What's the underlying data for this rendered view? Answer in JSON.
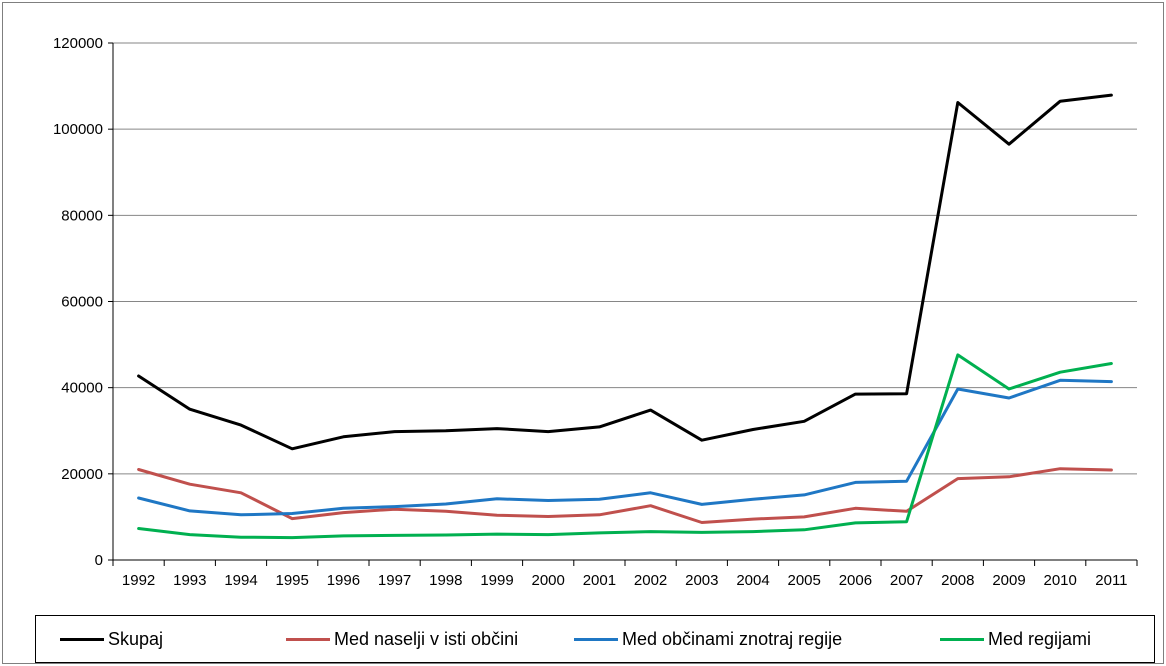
{
  "chart_data": {
    "type": "line",
    "title": "",
    "xlabel": "",
    "ylabel": "",
    "ylim": [
      0,
      120000
    ],
    "yticks": [
      "0",
      "20000",
      "40000",
      "60000",
      "80000",
      "100000",
      "120000"
    ],
    "ytick_values": [
      0,
      20000,
      40000,
      60000,
      80000,
      100000,
      120000
    ],
    "categories": [
      "1992",
      "1993",
      "1994",
      "1995",
      "1996",
      "1997",
      "1998",
      "1999",
      "2000",
      "2001",
      "2002",
      "2003",
      "2004",
      "2005",
      "2006",
      "2007",
      "2008",
      "2009",
      "2010",
      "2011"
    ],
    "grid": true,
    "legend_position": "bottom",
    "series": [
      {
        "name": "Skupaj",
        "color": "#000000",
        "values": [
          42700,
          35000,
          31300,
          25800,
          28600,
          29800,
          30000,
          30500,
          29800,
          30900,
          34800,
          27800,
          30300,
          32200,
          38500,
          38600,
          106200,
          96500,
          106500,
          107900
        ]
      },
      {
        "name": "Med naselji v isti občini",
        "color": "#c0504d",
        "values": [
          21000,
          17600,
          15600,
          9600,
          11000,
          11800,
          11300,
          10400,
          10100,
          10500,
          12600,
          8700,
          9500,
          10000,
          12000,
          11300,
          18900,
          19300,
          21200,
          20900
        ]
      },
      {
        "name": "Med občinami znotraj regije",
        "color": "#1f77c4",
        "values": [
          14400,
          11400,
          10500,
          10800,
          12000,
          12400,
          13000,
          14200,
          13800,
          14100,
          15600,
          12900,
          14100,
          15100,
          18000,
          18300,
          39700,
          37600,
          41700,
          41400
        ]
      },
      {
        "name": "Med regijami",
        "color": "#00b050",
        "values": [
          7300,
          5900,
          5300,
          5200,
          5600,
          5700,
          5800,
          6000,
          5900,
          6300,
          6600,
          6400,
          6600,
          7000,
          8600,
          8900,
          47600,
          39700,
          43600,
          45600
        ]
      }
    ]
  }
}
